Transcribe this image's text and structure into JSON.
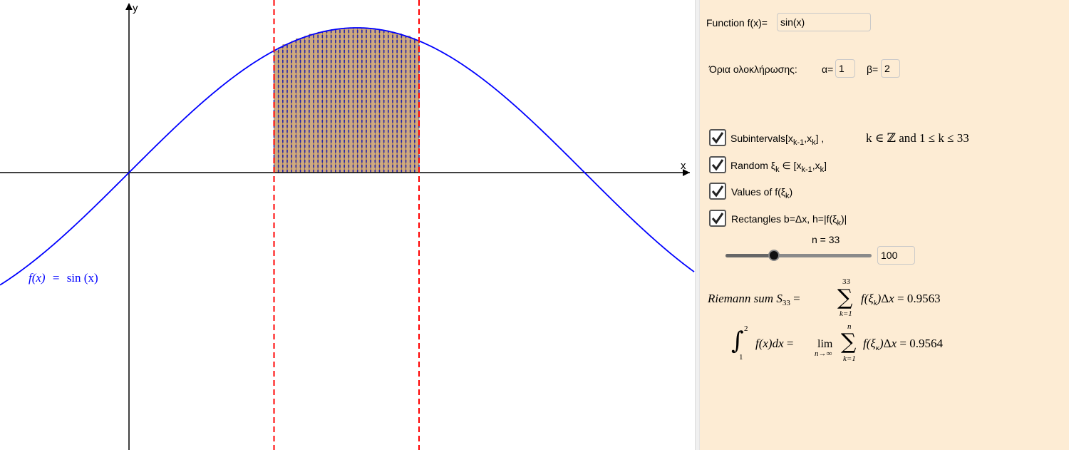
{
  "graph": {
    "function_label_lhs": "f(x)",
    "function_label_eq": "=",
    "function_label_rhs": "sin (x)",
    "x_axis_label": "x",
    "y_axis_label": "y",
    "curve_color": "#0000ff",
    "bound_line_color": "#ff0000",
    "rectangle_fill_color": "#c49a6c"
  },
  "panel": {
    "function_label": "Function f(x)=",
    "function_value": "sin(x)",
    "bounds_label": "Όρια ολοκλήρωσης:",
    "alpha_label": "α=",
    "alpha_value": "1",
    "beta_label": "β=",
    "beta_value": "2",
    "checkboxes": [
      {
        "label": "Subintervals[x",
        "checked": true
      },
      {
        "label": "Random ξ",
        "checked": true
      },
      {
        "label": "Values of  f(ξ",
        "checked": true
      },
      {
        "label": "Rectangles b=Δx, h=|f(ξ",
        "checked": true
      }
    ],
    "subintervals_condition": "k ∈ ℤ and 1 ≤ k ≤ 33",
    "slider_label": "n = 33",
    "slider_value": 33,
    "slider_max_value": "100",
    "riemann_label": "Riemann  sum",
    "riemann_sub": "33",
    "riemann_value": "0.9563",
    "integral_value": "0.9564",
    "integral_lower": "1",
    "integral_upper": "2",
    "sum_upper_n": "33",
    "sum_lower": "k=1",
    "lim_label": "lim",
    "lim_sub": "n→∞",
    "sum_upper_limit": "n"
  }
}
